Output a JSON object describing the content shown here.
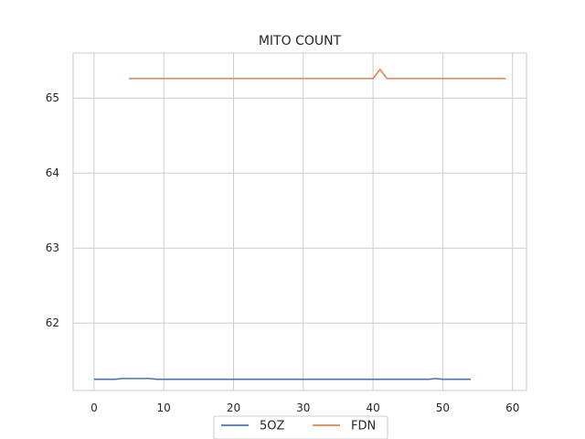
{
  "chart_data": {
    "type": "line",
    "title": "MITO COUNT",
    "xlabel": "",
    "ylabel": "",
    "xlim": [
      -3,
      62
    ],
    "ylim": [
      61.1,
      65.6
    ],
    "xticks": [
      0,
      10,
      20,
      30,
      40,
      50,
      60
    ],
    "yticks": [
      62,
      63,
      64,
      65
    ],
    "grid": true,
    "legend_position": "bottom-center",
    "series": [
      {
        "name": "5OZ",
        "color": "#4c72b0",
        "x": [
          0,
          1,
          2,
          3,
          4,
          5,
          6,
          7,
          8,
          9,
          10,
          11,
          12,
          13,
          14,
          15,
          16,
          17,
          18,
          19,
          20,
          21,
          22,
          23,
          24,
          25,
          26,
          27,
          28,
          29,
          30,
          31,
          32,
          33,
          34,
          35,
          36,
          37,
          38,
          39,
          40,
          41,
          42,
          43,
          44,
          45,
          46,
          47,
          48,
          49,
          50,
          51,
          52,
          53,
          54
        ],
        "values": [
          61.25,
          61.25,
          61.25,
          61.25,
          61.26,
          61.26,
          61.26,
          61.26,
          61.26,
          61.25,
          61.25,
          61.25,
          61.25,
          61.25,
          61.25,
          61.25,
          61.25,
          61.25,
          61.25,
          61.25,
          61.25,
          61.25,
          61.25,
          61.25,
          61.25,
          61.25,
          61.25,
          61.25,
          61.25,
          61.25,
          61.25,
          61.25,
          61.25,
          61.25,
          61.25,
          61.25,
          61.25,
          61.25,
          61.25,
          61.25,
          61.25,
          61.25,
          61.25,
          61.25,
          61.25,
          61.25,
          61.25,
          61.25,
          61.25,
          61.26,
          61.25,
          61.25,
          61.25,
          61.25,
          61.25
        ]
      },
      {
        "name": "FDN",
        "color": "#dd8452",
        "x": [
          5,
          6,
          7,
          8,
          9,
          10,
          11,
          12,
          13,
          14,
          15,
          16,
          17,
          18,
          19,
          20,
          21,
          22,
          23,
          24,
          25,
          26,
          27,
          28,
          29,
          30,
          31,
          32,
          33,
          34,
          35,
          36,
          37,
          38,
          39,
          40,
          41,
          42,
          43,
          44,
          45,
          46,
          47,
          48,
          49,
          50,
          51,
          52,
          53,
          54,
          55,
          56,
          57,
          58,
          59
        ],
        "values": [
          65.26,
          65.26,
          65.26,
          65.26,
          65.26,
          65.26,
          65.26,
          65.26,
          65.26,
          65.26,
          65.26,
          65.26,
          65.26,
          65.26,
          65.26,
          65.26,
          65.26,
          65.26,
          65.26,
          65.26,
          65.26,
          65.26,
          65.26,
          65.26,
          65.26,
          65.26,
          65.26,
          65.26,
          65.26,
          65.26,
          65.26,
          65.26,
          65.26,
          65.26,
          65.26,
          65.26,
          65.38,
          65.26,
          65.26,
          65.26,
          65.26,
          65.26,
          65.26,
          65.26,
          65.26,
          65.26,
          65.26,
          65.26,
          65.26,
          65.26,
          65.26,
          65.26,
          65.26,
          65.26,
          65.26
        ]
      }
    ]
  }
}
